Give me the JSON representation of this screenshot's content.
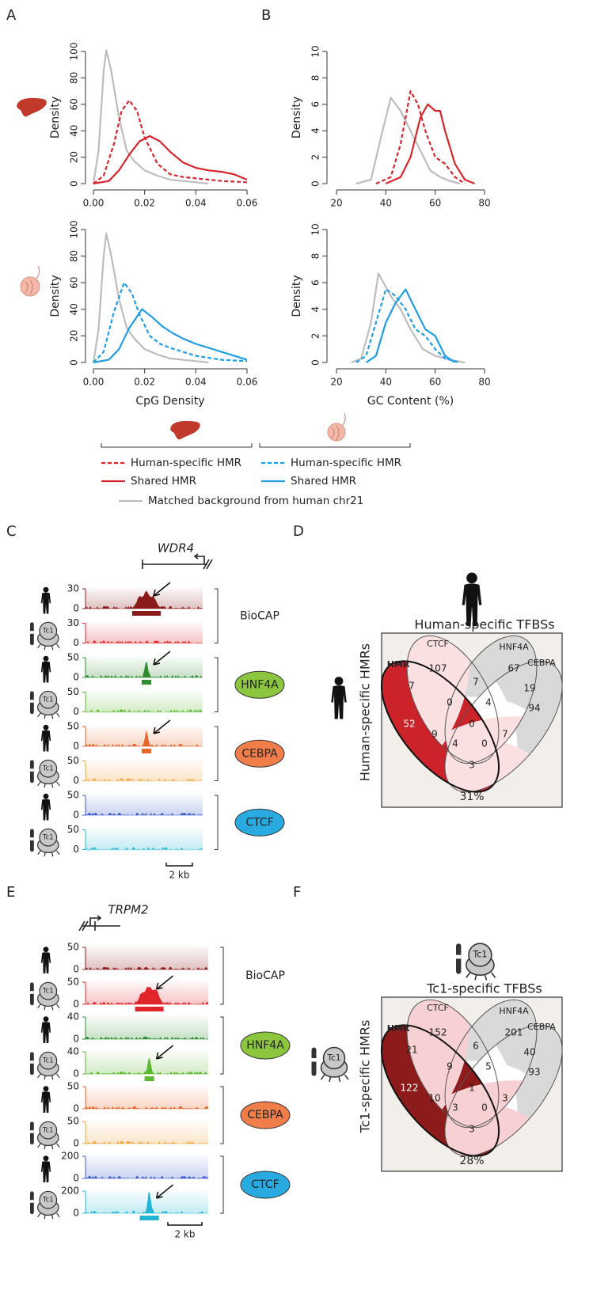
{
  "panel_labels": [
    "A",
    "B",
    "C",
    "D",
    "E",
    "F"
  ],
  "chart_data": [
    {
      "type": "line",
      "ylabel": "Density",
      "xlim": [
        0,
        0.06
      ],
      "ylim": [
        0,
        100
      ],
      "xticks": [
        {
          "value": 0,
          "label": "0.00"
        },
        0.02,
        0.04,
        0.06
      ],
      "yticks": [
        0,
        20,
        40,
        60,
        80,
        100
      ],
      "series": [
        {
          "color": "#bdbdbd",
          "dash": false,
          "x": [
            0,
            0.002,
            0.004,
            0.005,
            0.007,
            0.01,
            0.013,
            0.016,
            0.02,
            0.025,
            0.03,
            0.035,
            0.04,
            0.045
          ],
          "values": [
            0,
            25,
            85,
            101,
            85,
            50,
            25,
            17,
            10,
            6,
            3,
            2,
            1,
            0
          ]
        },
        {
          "color": "#d7262b",
          "dash": true,
          "x": [
            0,
            0.004,
            0.008,
            0.011,
            0.014,
            0.017,
            0.02,
            0.025,
            0.03,
            0.035,
            0.04,
            0.05,
            0.06
          ],
          "values": [
            0,
            6,
            30,
            55,
            63,
            55,
            35,
            15,
            7,
            5,
            4,
            2,
            1
          ]
        },
        {
          "color": "#d7262b",
          "dash": false,
          "x": [
            0,
            0.006,
            0.01,
            0.014,
            0.018,
            0.022,
            0.026,
            0.03,
            0.035,
            0.04,
            0.045,
            0.05,
            0.055,
            0.06
          ],
          "values": [
            0,
            2,
            10,
            22,
            32,
            36,
            32,
            24,
            16,
            12,
            10,
            9,
            7,
            3
          ]
        }
      ]
    },
    {
      "type": "line",
      "ylabel": "Density",
      "xlim": [
        20,
        80
      ],
      "ylim": [
        0,
        10
      ],
      "xticks": [
        20,
        40,
        60,
        80
      ],
      "yticks": [
        0,
        2,
        4,
        6,
        8,
        10
      ],
      "series": [
        {
          "color": "#bdbdbd",
          "dash": false,
          "x": [
            28,
            34,
            38,
            42,
            46,
            50,
            54,
            58,
            62,
            66,
            70
          ],
          "values": [
            0,
            0.3,
            3.5,
            6.5,
            5.5,
            4,
            2.5,
            1,
            0.5,
            0.2,
            0
          ]
        },
        {
          "color": "#d7262b",
          "dash": true,
          "x": [
            36,
            42,
            46,
            50,
            53,
            56,
            60,
            64,
            68,
            72
          ],
          "values": [
            0,
            0.5,
            3,
            7,
            6,
            4,
            2,
            1.5,
            0.5,
            0
          ]
        },
        {
          "color": "#d7262b",
          "dash": false,
          "x": [
            40,
            46,
            50,
            54,
            57,
            60,
            62,
            64,
            68,
            72,
            76
          ],
          "values": [
            0,
            0.5,
            2,
            5,
            6,
            5.5,
            5.5,
            4,
            1.5,
            0.3,
            0
          ]
        }
      ]
    },
    {
      "type": "line",
      "ylabel": "Density",
      "xlabel": "CpG Density",
      "xlim": [
        0,
        0.06
      ],
      "ylim": [
        0,
        100
      ],
      "xticks": [
        {
          "value": 0,
          "label": "0.00"
        },
        0.02,
        0.04,
        0.06
      ],
      "yticks": [
        0,
        20,
        40,
        60,
        80,
        100
      ],
      "series": [
        {
          "color": "#bdbdbd",
          "dash": false,
          "x": [
            0,
            0.002,
            0.004,
            0.005,
            0.007,
            0.01,
            0.013,
            0.016,
            0.02,
            0.025,
            0.03,
            0.035,
            0.04,
            0.045
          ],
          "values": [
            0,
            25,
            80,
            97,
            80,
            48,
            26,
            18,
            10,
            6,
            3,
            2,
            1,
            0
          ]
        },
        {
          "color": "#1f9ee3",
          "dash": true,
          "x": [
            0,
            0.004,
            0.008,
            0.012,
            0.015,
            0.018,
            0.022,
            0.026,
            0.03,
            0.035,
            0.04,
            0.05,
            0.06
          ],
          "values": [
            0,
            8,
            38,
            60,
            52,
            36,
            20,
            14,
            11,
            8,
            5,
            2,
            1
          ]
        },
        {
          "color": "#1f9ee3",
          "dash": false,
          "x": [
            0,
            0.006,
            0.01,
            0.014,
            0.019,
            0.023,
            0.027,
            0.031,
            0.035,
            0.04,
            0.045,
            0.05,
            0.055,
            0.06
          ],
          "values": [
            0,
            2,
            10,
            26,
            40,
            34,
            27,
            22,
            18,
            14,
            11,
            8,
            5,
            2
          ]
        }
      ]
    },
    {
      "type": "line",
      "ylabel": "Density",
      "xlabel": "GC Content (%)",
      "xlim": [
        20,
        80
      ],
      "ylim": [
        0,
        10
      ],
      "xticks": [
        20,
        40,
        60,
        80
      ],
      "yticks": [
        0,
        2,
        4,
        6,
        8,
        10
      ],
      "series": [
        {
          "color": "#bdbdbd",
          "dash": false,
          "x": [
            26,
            30,
            34,
            37,
            42,
            46,
            50,
            55,
            60,
            66,
            72
          ],
          "values": [
            0,
            0.3,
            3,
            6.7,
            5,
            4,
            2.5,
            1,
            0.5,
            0.2,
            0
          ]
        },
        {
          "color": "#1f9ee3",
          "dash": true,
          "x": [
            28,
            32,
            36,
            40,
            44,
            48,
            52,
            56,
            60,
            64,
            70
          ],
          "values": [
            0,
            0.5,
            3,
            5.5,
            5,
            4,
            2.5,
            2,
            1,
            0.3,
            0
          ]
        },
        {
          "color": "#1f9ee3",
          "dash": false,
          "x": [
            32,
            36,
            40,
            44,
            48,
            52,
            56,
            60,
            64,
            68
          ],
          "values": [
            0,
            0.5,
            3,
            4.5,
            5.5,
            4,
            2.5,
            2,
            0.5,
            0
          ]
        }
      ]
    }
  ],
  "legend": {
    "entries": [
      {
        "name": "Human-specific HMR",
        "color": "#d7262b",
        "dash": true
      },
      {
        "name": "Shared HMR",
        "color": "#d7262b",
        "dash": false
      },
      {
        "name": "Human-specific HMR",
        "color": "#1f9ee3",
        "dash": true
      },
      {
        "name": "Shared HMR",
        "color": "#1f9ee3",
        "dash": false
      },
      {
        "name": "Matched background from human chr21",
        "color": "#bdbdbd",
        "dash": false
      }
    ]
  },
  "icon_text": "Tc1",
  "panel_c": {
    "gene": "WDR4",
    "scale_label": "2 kb",
    "groups": [
      {
        "factor": "BioCAP",
        "colors": [
          "#8b1a1a",
          "#e0262b"
        ],
        "tracks": [
          {
            "yticks": [
              0,
              30
            ],
            "peak": true
          },
          {
            "yticks": [
              0,
              30
            ]
          }
        ]
      },
      {
        "factor": "HNF4A",
        "badge": "#8cc63f",
        "colors": [
          "#2e8b2e",
          "#5ab82e"
        ],
        "tracks": [
          {
            "yticks": [
              0,
              50
            ],
            "peak": true
          },
          {
            "yticks": [
              0,
              50
            ]
          }
        ]
      },
      {
        "factor": "CEBPA",
        "badge": "#f07d4a",
        "colors": [
          "#e8662a",
          "#f2a23a"
        ],
        "tracks": [
          {
            "yticks": [
              0,
              50
            ],
            "peak": true
          },
          {
            "yticks": [
              0,
              50
            ]
          }
        ]
      },
      {
        "factor": "CTCF",
        "badge": "#29abe2",
        "colors": [
          "#3b5bcc",
          "#22b5d5"
        ],
        "tracks": [
          {
            "yticks": [
              0,
              50
            ]
          },
          {
            "yticks": [
              0,
              50
            ]
          }
        ]
      }
    ]
  },
  "panel_e": {
    "gene": "TRPM2",
    "scale_label": "2 kb",
    "groups": [
      {
        "factor": "BioCAP",
        "colors": [
          "#8b1a1a",
          "#e0262b"
        ],
        "tracks": [
          {
            "yticks": [
              0,
              50
            ]
          },
          {
            "yticks": [
              0,
              50
            ],
            "peak": true
          }
        ]
      },
      {
        "factor": "HNF4A",
        "badge": "#8cc63f",
        "colors": [
          "#2e8b2e",
          "#5ab82e"
        ],
        "tracks": [
          {
            "yticks": [
              0,
              40
            ]
          },
          {
            "yticks": [
              0,
              40
            ],
            "peak": true
          }
        ]
      },
      {
        "factor": "CEBPA",
        "badge": "#f07d4a",
        "colors": [
          "#e8662a",
          "#f2a23a"
        ],
        "tracks": [
          {
            "yticks": [
              0,
              50
            ]
          },
          {
            "yticks": [
              0,
              50
            ]
          }
        ]
      },
      {
        "factor": "CTCF",
        "badge": "#29abe2",
        "colors": [
          "#3b5bcc",
          "#22b5d5"
        ],
        "tracks": [
          {
            "yticks": [
              0,
              200
            ]
          },
          {
            "yticks": [
              0,
              200
            ],
            "peak": true
          }
        ]
      }
    ]
  },
  "venn_d": {
    "icon": "human",
    "title": "Human-specific TFBSs",
    "ylabel": "Human-specific HMRs",
    "sets": [
      "HMR",
      "CTCF",
      "HNF4A",
      "CEBPA"
    ],
    "regions": [
      107,
      67,
      94,
      7,
      7,
      19,
      52,
      0,
      4,
      0,
      9,
      4,
      0,
      7,
      3
    ],
    "percent": "31%",
    "hmr_color": "#cc2229",
    "overlap_color": "#fbe0e2"
  },
  "venn_f": {
    "icon": "mouse",
    "title": "Tc1-specific TFBSs",
    "ylabel": "Tc1-specific HMRs",
    "sets": [
      "HMR",
      "CTCF",
      "HNF4A",
      "CEBPA"
    ],
    "regions": [
      152,
      201,
      93,
      21,
      6,
      40,
      122,
      9,
      5,
      1,
      10,
      3,
      0,
      3,
      3
    ],
    "percent": "28%",
    "hmr_color": "#8e1b1b",
    "overlap_color": "#f7d0d3"
  }
}
